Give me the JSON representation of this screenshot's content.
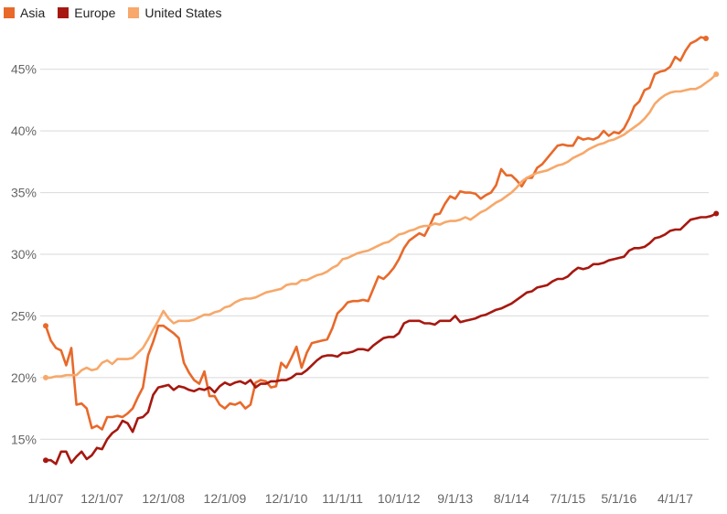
{
  "chart_data": {
    "type": "line",
    "title": "",
    "xlabel": "",
    "ylabel": "",
    "ylim": [
      12.5,
      47.5
    ],
    "yticks": [
      "15%",
      "20%",
      "25%",
      "30%",
      "35%",
      "40%",
      "45%"
    ],
    "ytick_values": [
      15,
      20,
      25,
      30,
      35,
      40,
      45
    ],
    "x_tick_labels": [
      "1/1/07",
      "12/1/07",
      "12/1/08",
      "12/1/09",
      "12/1/10",
      "11/1/11",
      "10/1/12",
      "9/1/13",
      "8/1/14",
      "7/1/15",
      "5/1/16",
      "4/1/17"
    ],
    "x_tick_index": [
      0,
      11,
      23,
      35,
      47,
      58,
      69,
      80,
      91,
      102,
      112,
      123
    ],
    "legend_position": "top-left",
    "grid": "horizontal",
    "series": [
      {
        "name": "Asia",
        "color": "#e8692a",
        "values": [
          24.2,
          23.0,
          22.4,
          22.2,
          21.0,
          22.4,
          17.8,
          17.9,
          17.5,
          15.9,
          16.1,
          15.8,
          16.8,
          16.8,
          16.9,
          16.8,
          17.1,
          17.5,
          18.4,
          19.2,
          21.8,
          22.9,
          24.2,
          24.2,
          23.9,
          23.6,
          23.2,
          21.2,
          20.4,
          19.8,
          19.5,
          20.5,
          18.5,
          18.5,
          17.8,
          17.5,
          17.9,
          17.8,
          18.0,
          17.5,
          17.8,
          19.6,
          19.8,
          19.7,
          19.2,
          19.3,
          21.2,
          20.8,
          21.6,
          22.5,
          20.8,
          22.0,
          22.8,
          22.9,
          23.0,
          23.1,
          24.0,
          25.2,
          25.6,
          26.1,
          26.2,
          26.2,
          26.3,
          26.2,
          27.2,
          28.2,
          28.0,
          28.4,
          28.9,
          29.6,
          30.5,
          31.1,
          31.4,
          31.7,
          31.5,
          32.3,
          33.2,
          33.3,
          34.1,
          34.7,
          34.5,
          35.1,
          35.0,
          35.0,
          34.9,
          34.5,
          34.8,
          35.0,
          35.6,
          36.9,
          36.4,
          36.4,
          36.0,
          35.5,
          36.2,
          36.2,
          37.0,
          37.3,
          37.8,
          38.3,
          38.8,
          38.9,
          38.8,
          38.8,
          39.5,
          39.3,
          39.4,
          39.3,
          39.5,
          40.0,
          39.6,
          39.9,
          39.8,
          40.2,
          41.0,
          42.0,
          42.4,
          43.3,
          43.5,
          44.6,
          44.8,
          44.9,
          45.2,
          46.0,
          45.7,
          46.5,
          47.1,
          47.3,
          47.6,
          47.5
        ]
      },
      {
        "name": "Europe",
        "color": "#a6180f",
        "values": [
          13.3,
          13.3,
          13.0,
          14.0,
          14.0,
          13.1,
          13.6,
          14.0,
          13.4,
          13.7,
          14.3,
          14.2,
          15.0,
          15.5,
          15.8,
          16.5,
          16.3,
          15.6,
          16.7,
          16.8,
          17.2,
          18.6,
          19.2,
          19.3,
          19.4,
          19.0,
          19.3,
          19.2,
          19.0,
          18.9,
          19.1,
          19.0,
          19.2,
          18.8,
          19.3,
          19.6,
          19.4,
          19.6,
          19.7,
          19.5,
          19.8,
          19.2,
          19.5,
          19.5,
          19.7,
          19.7,
          19.8,
          19.8,
          20.0,
          20.3,
          20.3,
          20.6,
          21.0,
          21.4,
          21.7,
          21.8,
          21.8,
          21.7,
          22.0,
          22.0,
          22.1,
          22.3,
          22.3,
          22.2,
          22.6,
          22.9,
          23.2,
          23.3,
          23.3,
          23.6,
          24.4,
          24.6,
          24.6,
          24.6,
          24.4,
          24.4,
          24.3,
          24.6,
          24.6,
          24.6,
          25.0,
          24.5,
          24.6,
          24.7,
          24.8,
          25.0,
          25.1,
          25.3,
          25.5,
          25.6,
          25.8,
          26.0,
          26.3,
          26.6,
          26.9,
          27.0,
          27.3,
          27.4,
          27.5,
          27.8,
          28.0,
          28.0,
          28.2,
          28.6,
          28.9,
          28.8,
          28.9,
          29.2,
          29.2,
          29.3,
          29.5,
          29.6,
          29.7,
          29.8,
          30.3,
          30.5,
          30.5,
          30.6,
          30.9,
          31.3,
          31.4,
          31.6,
          31.9,
          32.0,
          32.0,
          32.4,
          32.8,
          32.9,
          33.0,
          33.0,
          33.1,
          33.3
        ]
      },
      {
        "name": "United States",
        "color": "#f7a86a",
        "values": [
          20.0,
          20.0,
          20.1,
          20.1,
          20.2,
          20.2,
          20.2,
          20.6,
          20.8,
          20.6,
          20.7,
          21.2,
          21.4,
          21.1,
          21.5,
          21.5,
          21.5,
          21.6,
          22.0,
          22.4,
          23.1,
          23.9,
          24.6,
          25.4,
          24.8,
          24.4,
          24.6,
          24.6,
          24.6,
          24.7,
          24.9,
          25.1,
          25.1,
          25.3,
          25.4,
          25.7,
          25.8,
          26.1,
          26.3,
          26.4,
          26.4,
          26.5,
          26.7,
          26.9,
          27.0,
          27.1,
          27.2,
          27.5,
          27.6,
          27.6,
          27.9,
          27.9,
          28.1,
          28.3,
          28.4,
          28.6,
          28.9,
          29.1,
          29.6,
          29.7,
          29.9,
          30.1,
          30.2,
          30.3,
          30.5,
          30.7,
          30.9,
          31.0,
          31.3,
          31.6,
          31.7,
          31.9,
          32.0,
          32.2,
          32.3,
          32.3,
          32.5,
          32.4,
          32.6,
          32.7,
          32.7,
          32.8,
          33.0,
          32.8,
          33.1,
          33.4,
          33.6,
          33.9,
          34.2,
          34.4,
          34.7,
          35.0,
          35.4,
          35.9,
          36.2,
          36.4,
          36.6,
          36.7,
          36.8,
          37.0,
          37.2,
          37.3,
          37.5,
          37.8,
          38.0,
          38.2,
          38.5,
          38.7,
          38.9,
          39.0,
          39.2,
          39.3,
          39.5,
          39.7,
          40.0,
          40.3,
          40.6,
          41.0,
          41.5,
          42.2,
          42.6,
          42.9,
          43.1,
          43.2,
          43.2,
          43.3,
          43.4,
          43.4,
          43.6,
          43.9,
          44.2,
          44.6
        ]
      }
    ]
  }
}
